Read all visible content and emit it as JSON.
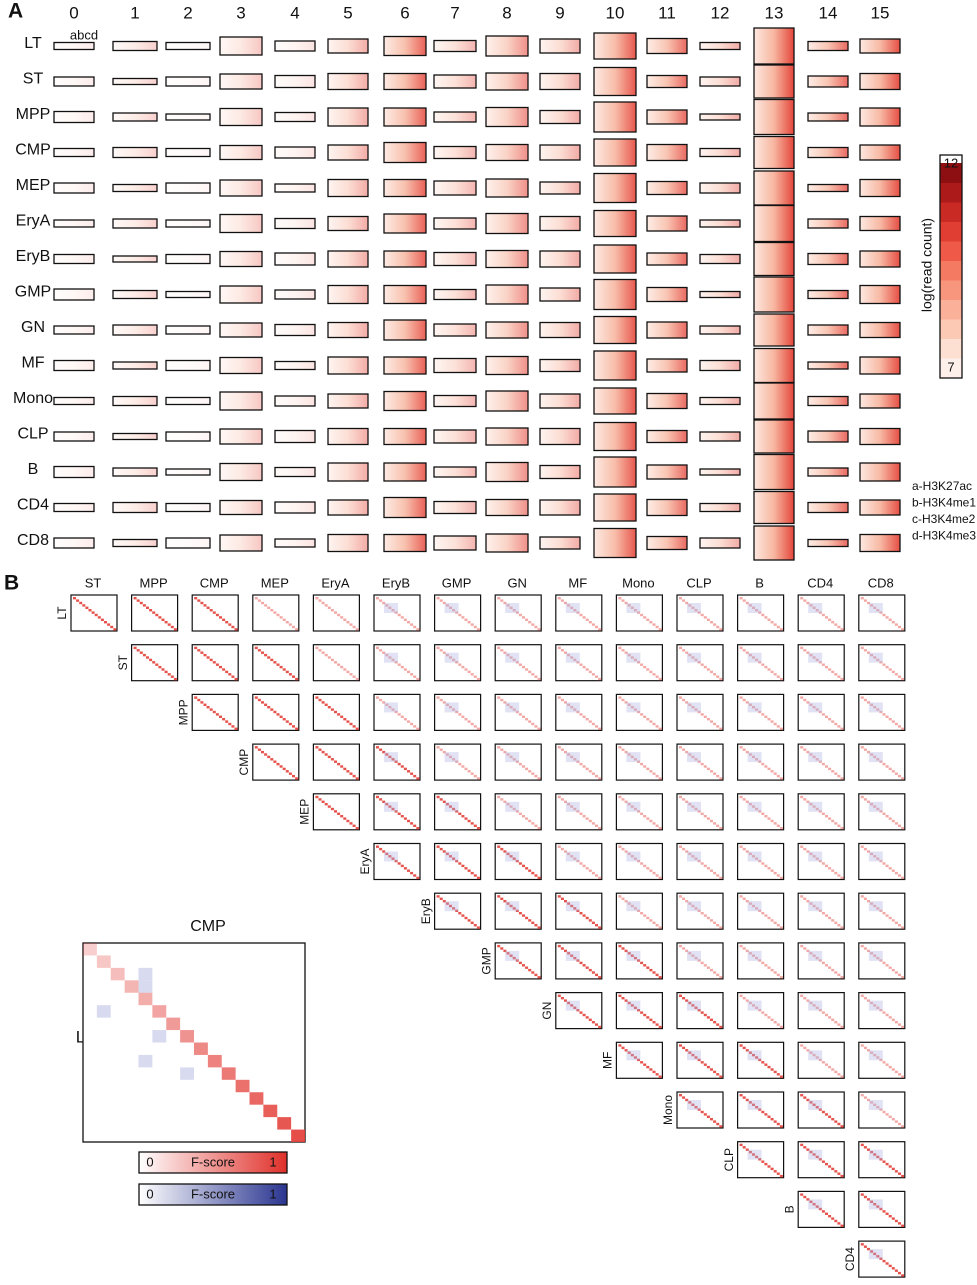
{
  "panel_a": {
    "label": "A",
    "columns": [
      "0",
      "1",
      "2",
      "3",
      "4",
      "5",
      "6",
      "7",
      "8",
      "9",
      "10",
      "11",
      "12",
      "13",
      "14",
      "15"
    ],
    "rows": [
      "LT",
      "ST",
      "MPP",
      "CMP",
      "MEP",
      "EryA",
      "EryB",
      "GMP",
      "GN",
      "MF",
      "Mono",
      "CLP",
      "B",
      "CD4",
      "CD8"
    ],
    "sample_label": "abcd",
    "colorbar": {
      "title": "log(read count)",
      "max": 12,
      "min": 7
    },
    "legend": [
      "a-H3K27ac",
      "b-H3K4me1",
      "c-H3K4me2",
      "d-H3K4me3"
    ]
  },
  "panel_b": {
    "label": "B",
    "columns": [
      "ST",
      "MPP",
      "CMP",
      "MEP",
      "EryA",
      "EryB",
      "GMP",
      "GN",
      "MF",
      "Mono",
      "CLP",
      "B",
      "CD4",
      "CD8"
    ],
    "rows": [
      "LT",
      "ST",
      "MPP",
      "CMP",
      "MEP",
      "EryA",
      "EryB",
      "GMP",
      "GN",
      "MF",
      "Mono",
      "CLP",
      "B",
      "CD4"
    ],
    "inset": {
      "title": "CMP",
      "row_label": "LT",
      "scales": [
        {
          "min": 0,
          "label": "F-score",
          "max": 1
        },
        {
          "min": 0,
          "label": "F-score",
          "max": 1
        }
      ]
    }
  }
}
